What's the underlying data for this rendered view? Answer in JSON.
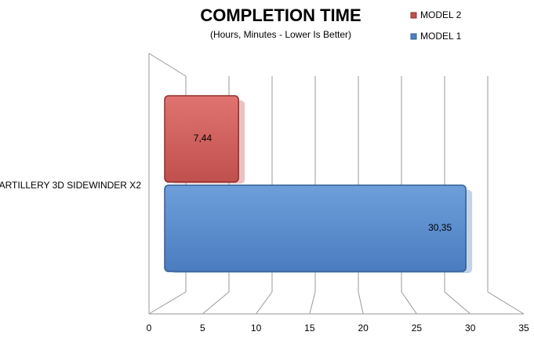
{
  "chart_data": {
    "type": "bar",
    "orientation": "horizontal",
    "title": "COMPLETION TIME",
    "subtitle": "(Hours, Minutes - Lower Is Better)",
    "categories": [
      "ARTILLERY 3D SIDEWINDER X2"
    ],
    "series": [
      {
        "name": "MODEL 2",
        "color": "#c0504d",
        "values": [
          7.44
        ],
        "value_labels": [
          "7,44"
        ]
      },
      {
        "name": "MODEL 1",
        "color": "#4f81bd",
        "values": [
          30.35
        ],
        "value_labels": [
          "30,35"
        ]
      }
    ],
    "xlim": [
      0,
      35
    ],
    "xticks": [
      0,
      5,
      10,
      15,
      20,
      25,
      30,
      35
    ],
    "grid": true,
    "legend": "top-right"
  }
}
